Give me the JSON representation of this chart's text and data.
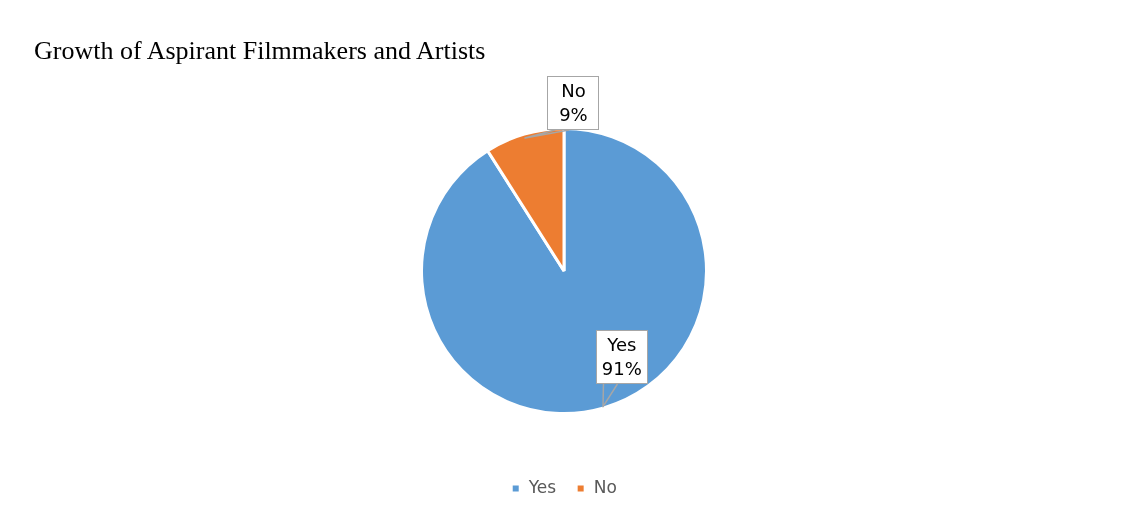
{
  "chart_data": {
    "type": "pie",
    "title": "Growth of Aspirant Filmmakers and Artists",
    "categories": [
      "Yes",
      "No"
    ],
    "values": [
      91,
      9
    ],
    "colors": [
      "#5b9bd5",
      "#ed7d31"
    ],
    "value_labels": [
      "91%",
      "9%"
    ],
    "legend": "bottom"
  }
}
